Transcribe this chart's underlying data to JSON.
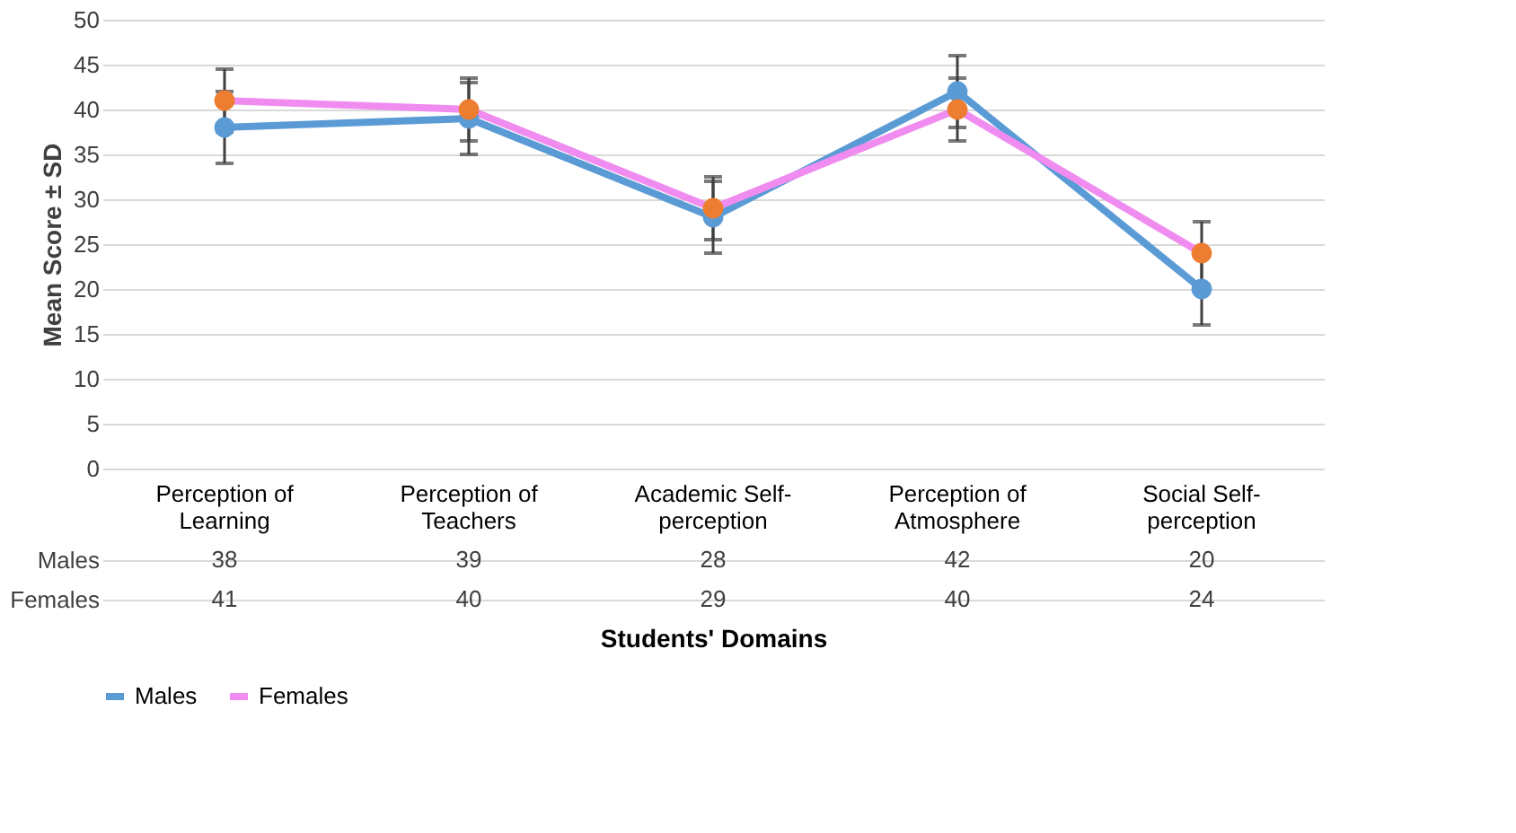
{
  "chart_data": {
    "type": "line",
    "xlabel": "Students' Domains",
    "ylabel": "Mean Score ± SD",
    "categories": [
      "Perception of Learning",
      "Perception of Teachers",
      "Academic Self-perception",
      "Perception of Atmosphere",
      "Social Self-perception"
    ],
    "series": [
      {
        "name": "Males",
        "color": "#5b9bd5",
        "values": [
          38,
          39,
          28,
          42,
          20
        ],
        "errors": [
          4,
          4,
          4,
          4,
          4
        ]
      },
      {
        "name": "Females",
        "color": "#f08cf0",
        "colors": [
          "#ed7d31",
          "#ed7d31",
          "#ed7d31",
          "#ed7d31",
          "#ed7d31"
        ],
        "values": [
          41,
          40,
          29,
          40,
          24
        ],
        "errors": [
          3.5,
          3.5,
          3.5,
          3.5,
          3.5
        ]
      }
    ],
    "ylim": [
      0,
      50
    ],
    "yticks": [
      0,
      5,
      10,
      15,
      20,
      25,
      30,
      35,
      40,
      45,
      50
    ],
    "grid": "y",
    "legend": "bottom",
    "marker": "circle",
    "data_labels": true
  }
}
